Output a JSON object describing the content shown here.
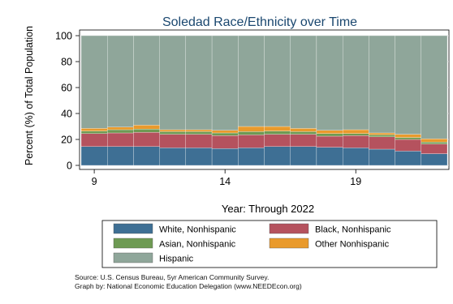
{
  "chart_data": {
    "type": "bar",
    "stacked": true,
    "title": "Soledad Race/Ethnicity over Time",
    "xlabel": "Year: Through 2022",
    "ylabel": "Percent (%) of Total Population",
    "x": [
      9,
      10,
      11,
      12,
      13,
      14,
      15,
      16,
      17,
      18,
      19,
      20,
      21,
      22
    ],
    "xticks": [
      "9",
      "14",
      "19"
    ],
    "xtick_values": [
      9,
      14,
      19
    ],
    "yticks": [
      "0",
      "20",
      "40",
      "60",
      "80",
      "100"
    ],
    "ytick_values": [
      0,
      20,
      40,
      60,
      80,
      100
    ],
    "ylim": [
      0,
      100
    ],
    "xlim": [
      8.5,
      22.5
    ],
    "grid": true,
    "legend_position": "bottom",
    "series": [
      {
        "name": "White, Nonhispanic",
        "color": "#3e6f94",
        "values": [
          14.5,
          14.5,
          14.5,
          13.5,
          13.5,
          13,
          13.5,
          14.5,
          14.5,
          14,
          13.5,
          12.5,
          11,
          9
        ]
      },
      {
        "name": "Black, Nonhispanic",
        "color": "#b5525e",
        "values": [
          10,
          10.5,
          11,
          10.5,
          10.5,
          10,
          10,
          9.5,
          9.5,
          8.5,
          9.5,
          9.5,
          9,
          7.5
        ]
      },
      {
        "name": "Asian, Nonhispanic",
        "color": "#6e9a53",
        "values": [
          2,
          2.5,
          2.5,
          2,
          2,
          2,
          2.5,
          2.5,
          2,
          2,
          1.5,
          1.5,
          1.5,
          1.5
        ]
      },
      {
        "name": "Other Nonhispanic",
        "color": "#e99a2c",
        "values": [
          2,
          2,
          3,
          1.5,
          1.5,
          2,
          4,
          3.5,
          2.5,
          2.5,
          3,
          1.5,
          2.5,
          2.5
        ]
      },
      {
        "name": "Hispanic",
        "color": "#8fa69a",
        "values": [
          71.5,
          70.5,
          69,
          72.5,
          72.5,
          73,
          70,
          70,
          71.5,
          73,
          72.5,
          75,
          76,
          79.5
        ]
      }
    ]
  },
  "footer": {
    "source": "Source:  U.S. Census Bureau, 5yr American Community Survey.",
    "credit": "Graph by: National Economic Education Delegation (www.NEEDEcon.org)"
  }
}
